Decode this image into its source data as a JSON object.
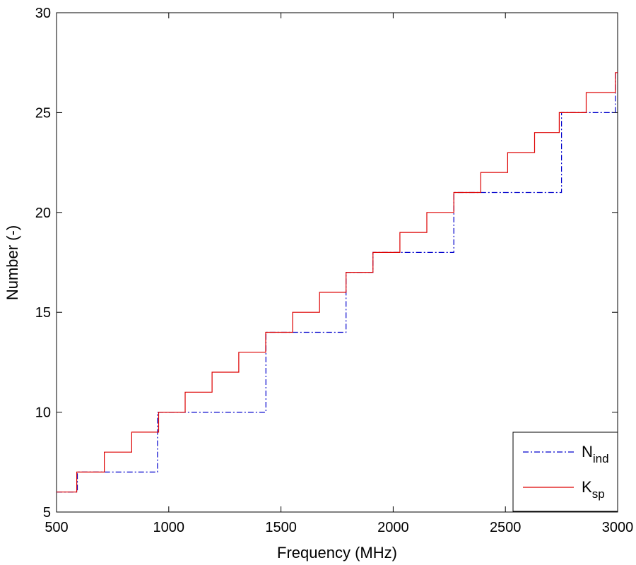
{
  "chart_data": {
    "type": "line",
    "title": "",
    "xlabel": "Frequency (MHz)",
    "ylabel": "Number (-)",
    "xlim": [
      500,
      3000
    ],
    "ylim": [
      5,
      30
    ],
    "xticks": [
      "500",
      "1000",
      "1500",
      "2000",
      "2500",
      "3000"
    ],
    "yticks": [
      "5",
      "10",
      "15",
      "20",
      "25",
      "30"
    ],
    "grid": false,
    "legend_position": "bottom-right",
    "series": [
      {
        "name": "N",
        "name_sub": "ind",
        "color": "#0000cc",
        "style": "dashdot",
        "x": [
          500,
          593,
          593,
          950,
          950,
          1433,
          1433,
          1790,
          1790,
          1910,
          1910,
          2270,
          2270,
          2750,
          2750,
          2990,
          2990,
          3000
        ],
        "y": [
          6,
          6,
          7,
          7,
          10,
          10,
          14,
          14,
          17,
          17,
          18,
          18,
          21,
          21,
          25,
          25,
          27,
          27
        ]
      },
      {
        "name": "K",
        "name_sub": "sp",
        "color": "#dd0000",
        "style": "solid",
        "x": [
          500,
          590,
          590,
          713,
          713,
          835,
          835,
          955,
          955,
          1073,
          1073,
          1193,
          1193,
          1312,
          1312,
          1432,
          1432,
          1552,
          1552,
          1672,
          1672,
          1790,
          1790,
          1910,
          1910,
          2030,
          2030,
          2150,
          2150,
          2270,
          2270,
          2390,
          2390,
          2510,
          2510,
          2630,
          2630,
          2740,
          2740,
          2860,
          2860,
          2990,
          2990,
          3000
        ],
        "y": [
          6,
          6,
          7,
          7,
          8,
          8,
          9,
          9,
          10,
          10,
          11,
          11,
          12,
          12,
          13,
          13,
          14,
          14,
          15,
          15,
          16,
          16,
          17,
          17,
          18,
          18,
          19,
          19,
          20,
          20,
          21,
          21,
          22,
          22,
          23,
          23,
          24,
          24,
          25,
          25,
          26,
          26,
          27,
          27
        ]
      }
    ]
  }
}
